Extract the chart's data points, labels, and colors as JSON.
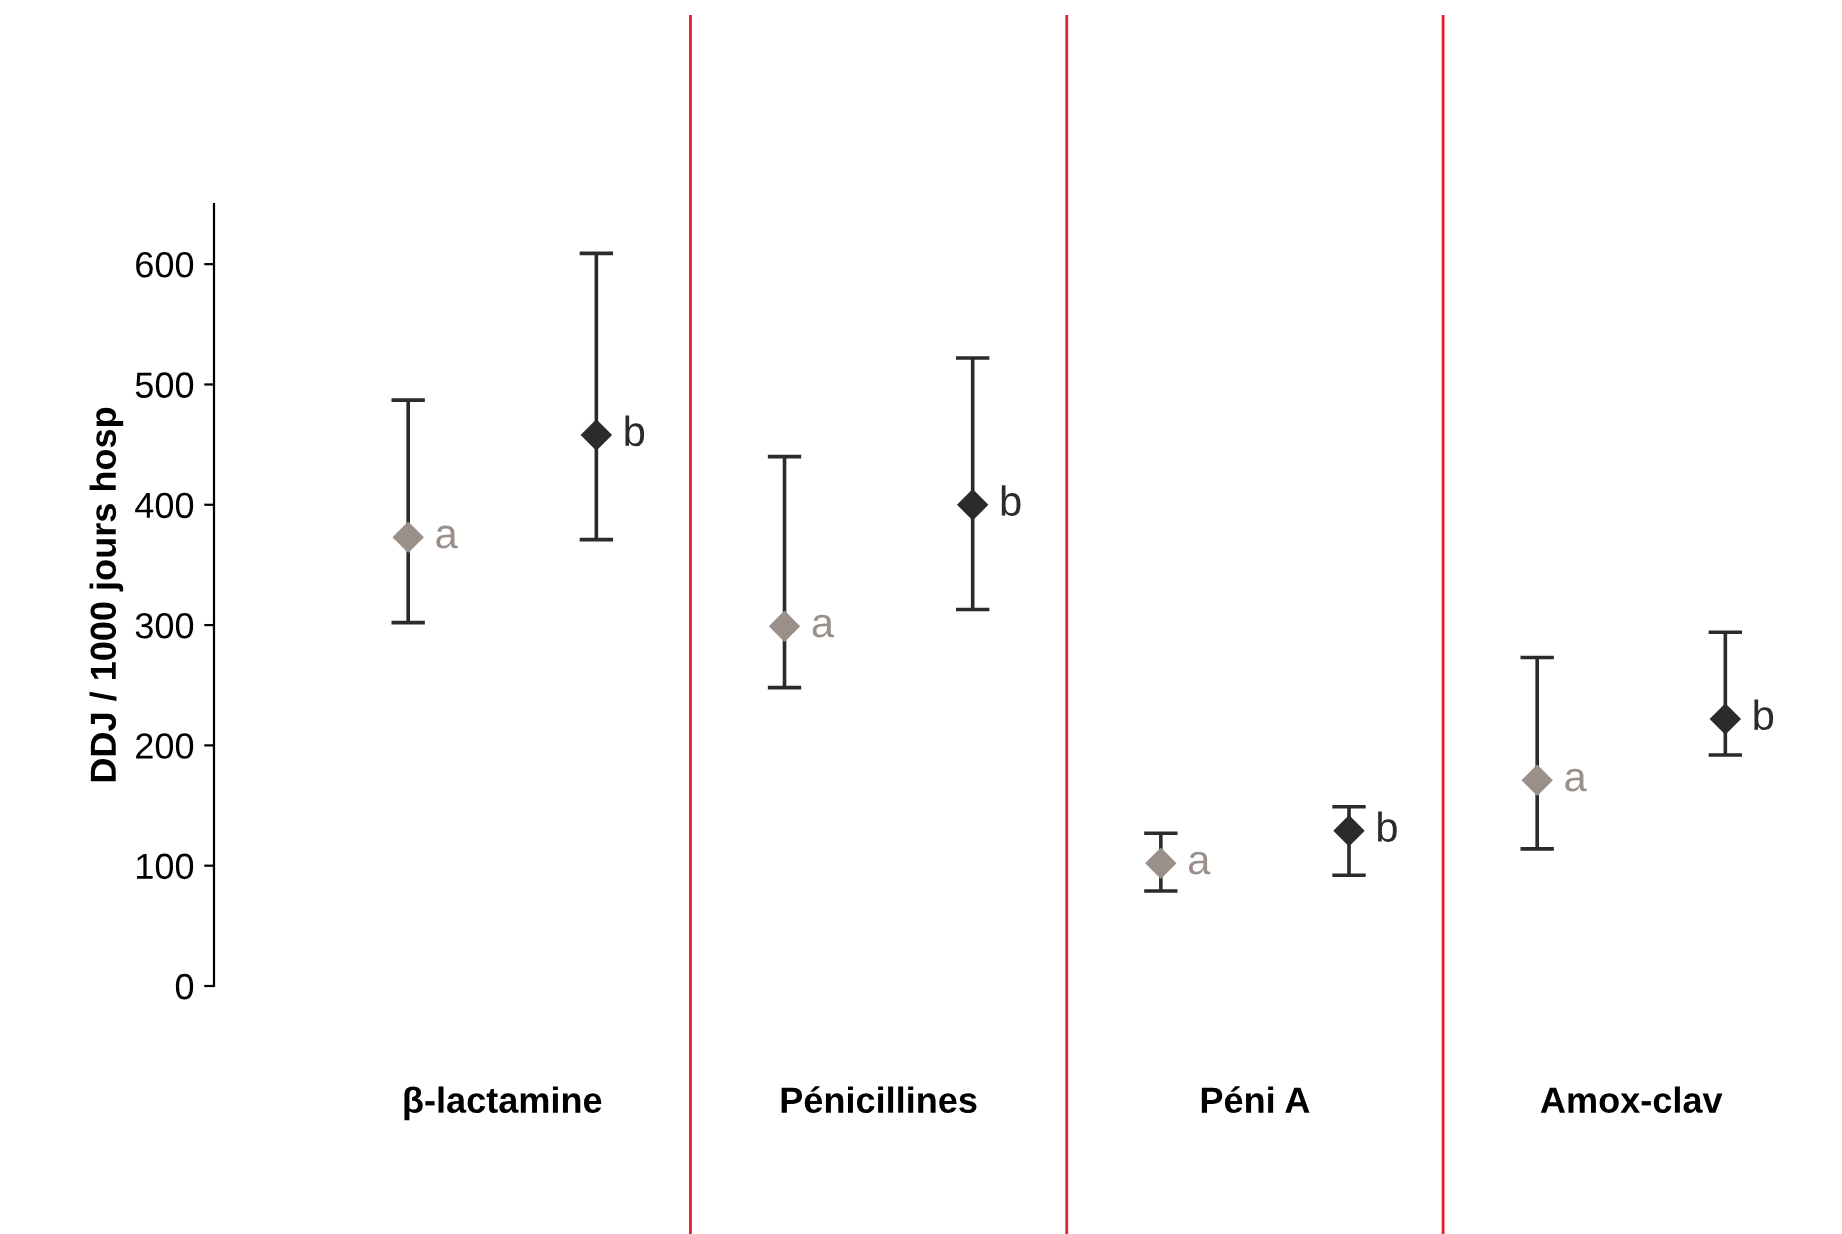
{
  "chart_data": {
    "type": "scatter",
    "ylabel": "DDJ / 1000 jours hosp",
    "categories": [
      "β-lactamine",
      "Pénicillines",
      "Péni A",
      "Amox-clav"
    ],
    "series": [
      {
        "name": "a",
        "color": "#9b8f8a",
        "values": [
          373,
          299,
          102,
          171
        ],
        "errors": [
          [
            302,
            487
          ],
          [
            248,
            440
          ],
          [
            79,
            127
          ],
          [
            114,
            273
          ]
        ]
      },
      {
        "name": "b",
        "color": "#2b2b2b",
        "values": [
          458,
          400,
          129,
          222
        ],
        "errors": [
          [
            371,
            609
          ],
          [
            313,
            522
          ],
          [
            92,
            149
          ],
          [
            192,
            294
          ]
        ]
      }
    ],
    "ylim": [
      0,
      650
    ],
    "yticks": [
      0,
      100,
      200,
      300,
      400,
      500,
      600
    ],
    "marker": "diamond",
    "grid": false,
    "legend": false
  }
}
